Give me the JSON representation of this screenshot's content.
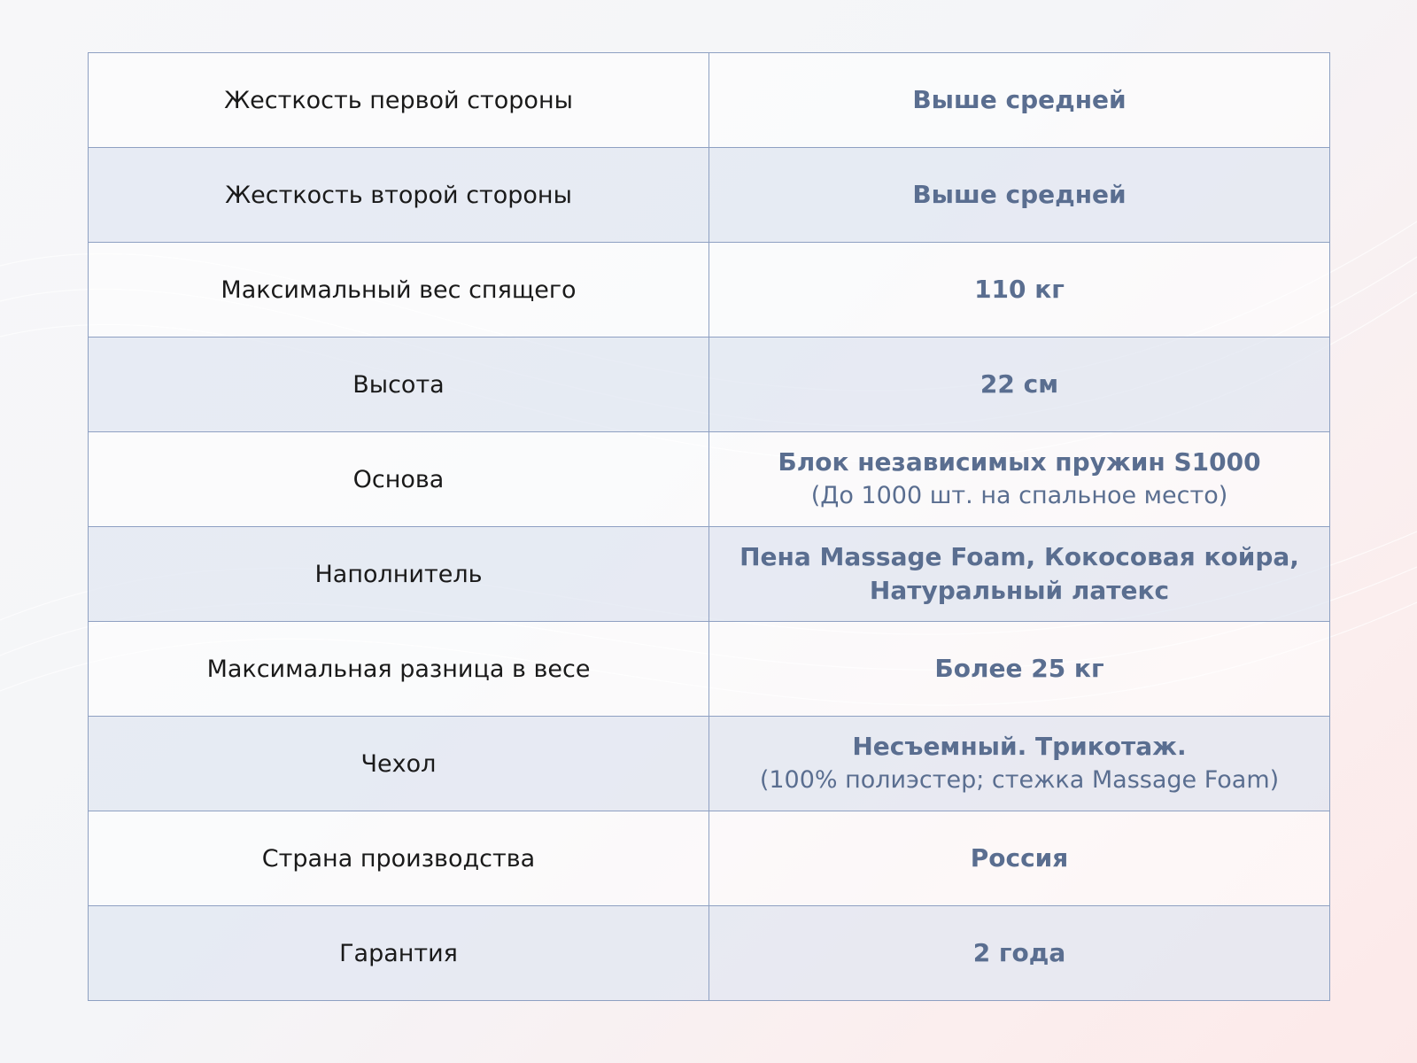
{
  "specs": [
    {
      "label": "Жесткость первой стороны",
      "value": "Выше средней",
      "sub": null
    },
    {
      "label": "Жесткость второй стороны",
      "value": "Выше средней",
      "sub": null
    },
    {
      "label": "Максимальный вес спящего",
      "value": "110 кг",
      "sub": null
    },
    {
      "label": "Высота",
      "value": "22 см",
      "sub": null
    },
    {
      "label": "Основа",
      "value": "Блок независимых пружин S1000",
      "sub": "(До 1000 шт. на спальное место)"
    },
    {
      "label": "Наполнитель",
      "value": "Пена Massage Foam, Кокосовая койра, Натуральный латекс",
      "sub": null
    },
    {
      "label": "Максимальная разница в весе",
      "value": "Более 25 кг",
      "sub": null
    },
    {
      "label": "Чехол",
      "value": "Несъемный. Трикотаж.",
      "sub": "(100% полиэстер; стежка Massage Foam)"
    },
    {
      "label": "Страна производства",
      "value": "Россия",
      "sub": null
    },
    {
      "label": "Гарантия",
      "value": "2 года",
      "sub": null
    }
  ],
  "colors": {
    "value_text": "#5a6e90",
    "border": "#8ea0c2",
    "stripe": "#e2e7f1"
  }
}
